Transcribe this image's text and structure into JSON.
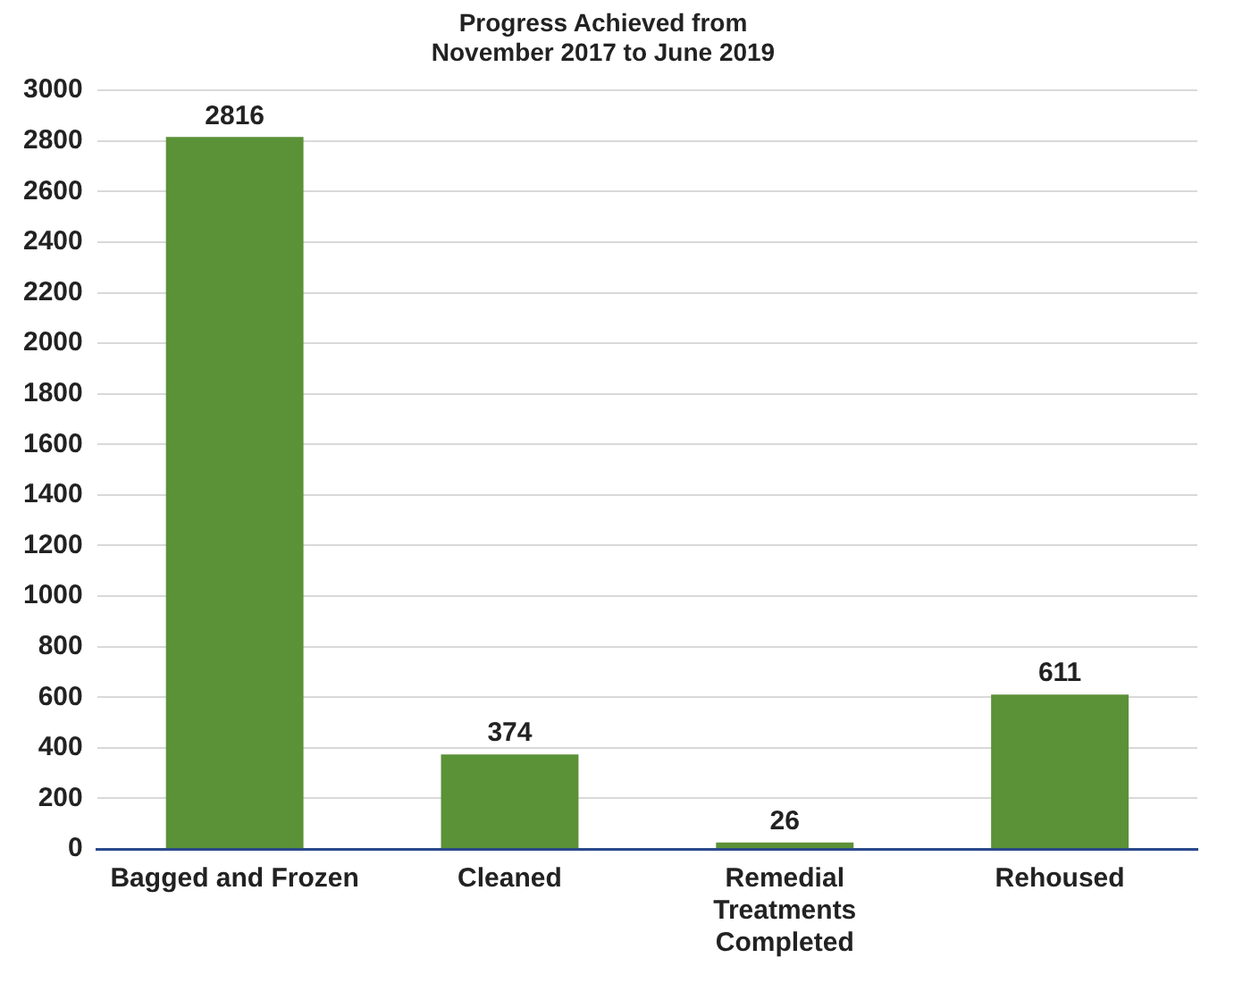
{
  "chart_data": {
    "type": "bar",
    "title": "Progress Achieved from\nNovember 2017 to June 2019",
    "categories": [
      "Bagged and Frozen",
      "Cleaned",
      "Remedial Treatments Completed",
      "Rehoused"
    ],
    "values": [
      2816,
      374,
      26,
      611
    ],
    "color": "#5b9137",
    "ylim": [
      0,
      3000
    ],
    "yticks": [
      0,
      200,
      400,
      600,
      800,
      1000,
      1200,
      1400,
      1600,
      1800,
      2000,
      2200,
      2400,
      2600,
      2800,
      3000
    ],
    "grid": "y",
    "data_labels": true
  }
}
